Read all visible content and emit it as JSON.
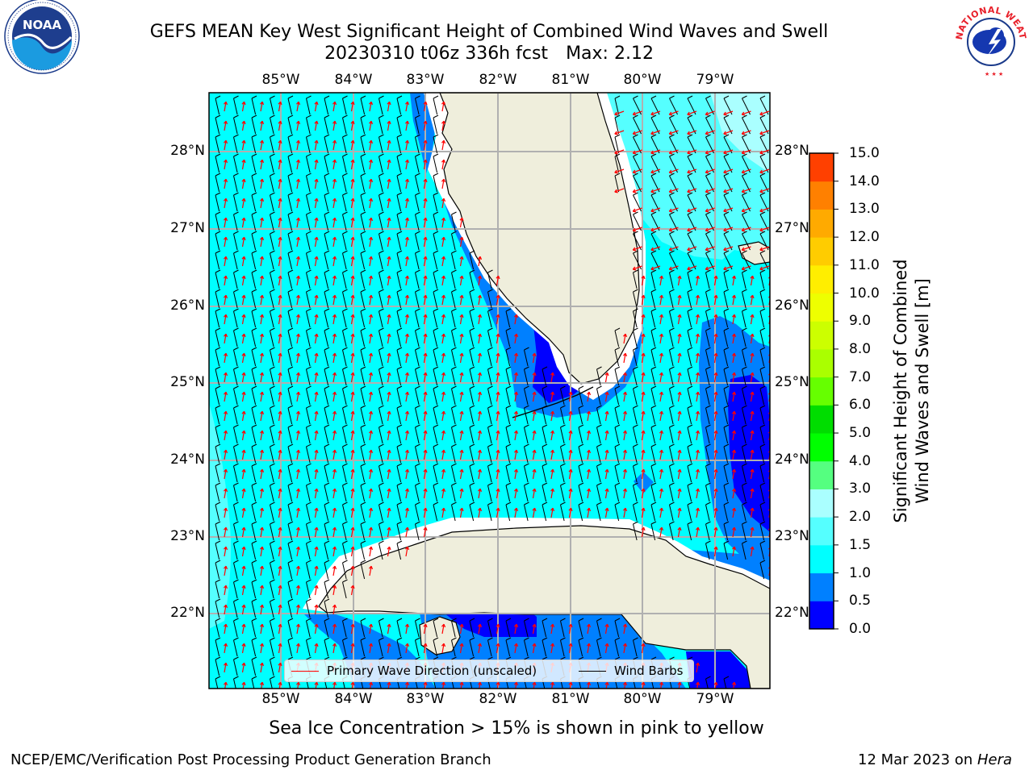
{
  "title": {
    "line1": "GEFS MEAN Key West Significant Height of Combined Wind Waves and Swell",
    "run": "20230310 t06z 336h fcst",
    "max": "Max: 2.12"
  },
  "map": {
    "lon_ticks": [
      "85°W",
      "84°W",
      "83°W",
      "82°W",
      "81°W",
      "80°W",
      "79°W"
    ],
    "lat_ticks": [
      "28°N",
      "27°N",
      "26°N",
      "25°N",
      "24°N",
      "23°N",
      "22°N"
    ],
    "extent": {
      "lon_min": -86.0,
      "lon_max": -78.3,
      "lat_min": 21.0,
      "lat_max": 28.75
    },
    "colors": {
      "land": "#efeedc",
      "ocean_base": "#00ffff",
      "band_1_0_1_5": "#00ffff",
      "band_0_5_1_0": "#0080ff",
      "band_0_0_0_5": "#0000ff",
      "band_1_5_2_0": "#55ffff",
      "wave_arrow": "#ff0000",
      "wind_barb": "#000000",
      "grid": "#b0b0b0"
    },
    "wind_direction": "southerly",
    "wave_direction": "mostly southerly"
  },
  "legend": {
    "wave_label": "Primary Wave Direction (unscaled)",
    "wind_label": "Wind Barbs"
  },
  "colorbar": {
    "label_line1": "Significant Height of Combined",
    "label_line2": "Wind Waves and Swell [m]",
    "ticks": [
      "0.0",
      "0.5",
      "1.0",
      "1.5",
      "2.0",
      "3.0",
      "4.0",
      "5.0",
      "6.0",
      "7.0",
      "8.0",
      "9.0",
      "10.0",
      "11.0",
      "12.0",
      "13.0",
      "14.0",
      "15.0"
    ],
    "colors": [
      "#0000ff",
      "#0080ff",
      "#00ffff",
      "#55ffff",
      "#aaffff",
      "#55ff80",
      "#00ff00",
      "#00dd00",
      "#66ff00",
      "#aaff00",
      "#ccff00",
      "#eeff00",
      "#ffee00",
      "#ffcc00",
      "#ffaa00",
      "#ff8000",
      "#ff4000",
      "#ff0000"
    ]
  },
  "ice_note": "Sea Ice Concentration > 15% is shown in pink to yellow",
  "footer": {
    "left": "NCEP/EMC/Verification Post Processing Product Generation Branch",
    "date": "12 Mar 2023 on",
    "host": "Hera"
  },
  "logos": {
    "noaa_text": "NOAA",
    "nws_text": "NATIONAL WEATHER SERVICE"
  }
}
